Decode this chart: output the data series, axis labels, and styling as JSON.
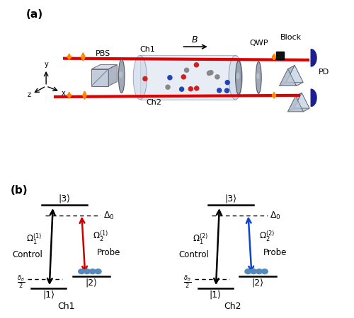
{
  "panel_a_label": "(a)",
  "panel_b_label": "(b)",
  "background_color": "#ffffff",
  "beam_color": "#dd0000",
  "orange_color": "#ff8800",
  "ch1_label": "Ch1",
  "ch2_label": "Ch2",
  "pbs_label": "PBS",
  "qwp_label": "QWP",
  "block_label": "Block",
  "pd_label": "PD",
  "B_label": "B",
  "ch1_eit": {
    "state3_label": "|3⟩",
    "state1_label": "|1⟩",
    "state2_label": "|2⟩",
    "control_label": "Control",
    "probe_label": "Probe",
    "channel_label": "Ch1",
    "control_color": "#000000",
    "probe_color": "#cc0000",
    "superscript": "1"
  },
  "ch2_eit": {
    "state3_label": "|3⟩",
    "state1_label": "|1⟩",
    "state2_label": "|2⟩",
    "control_label": "Control",
    "probe_label": "Probe",
    "channel_label": "Ch2",
    "control_color": "#000000",
    "probe_color": "#1144cc",
    "superscript": "2"
  }
}
